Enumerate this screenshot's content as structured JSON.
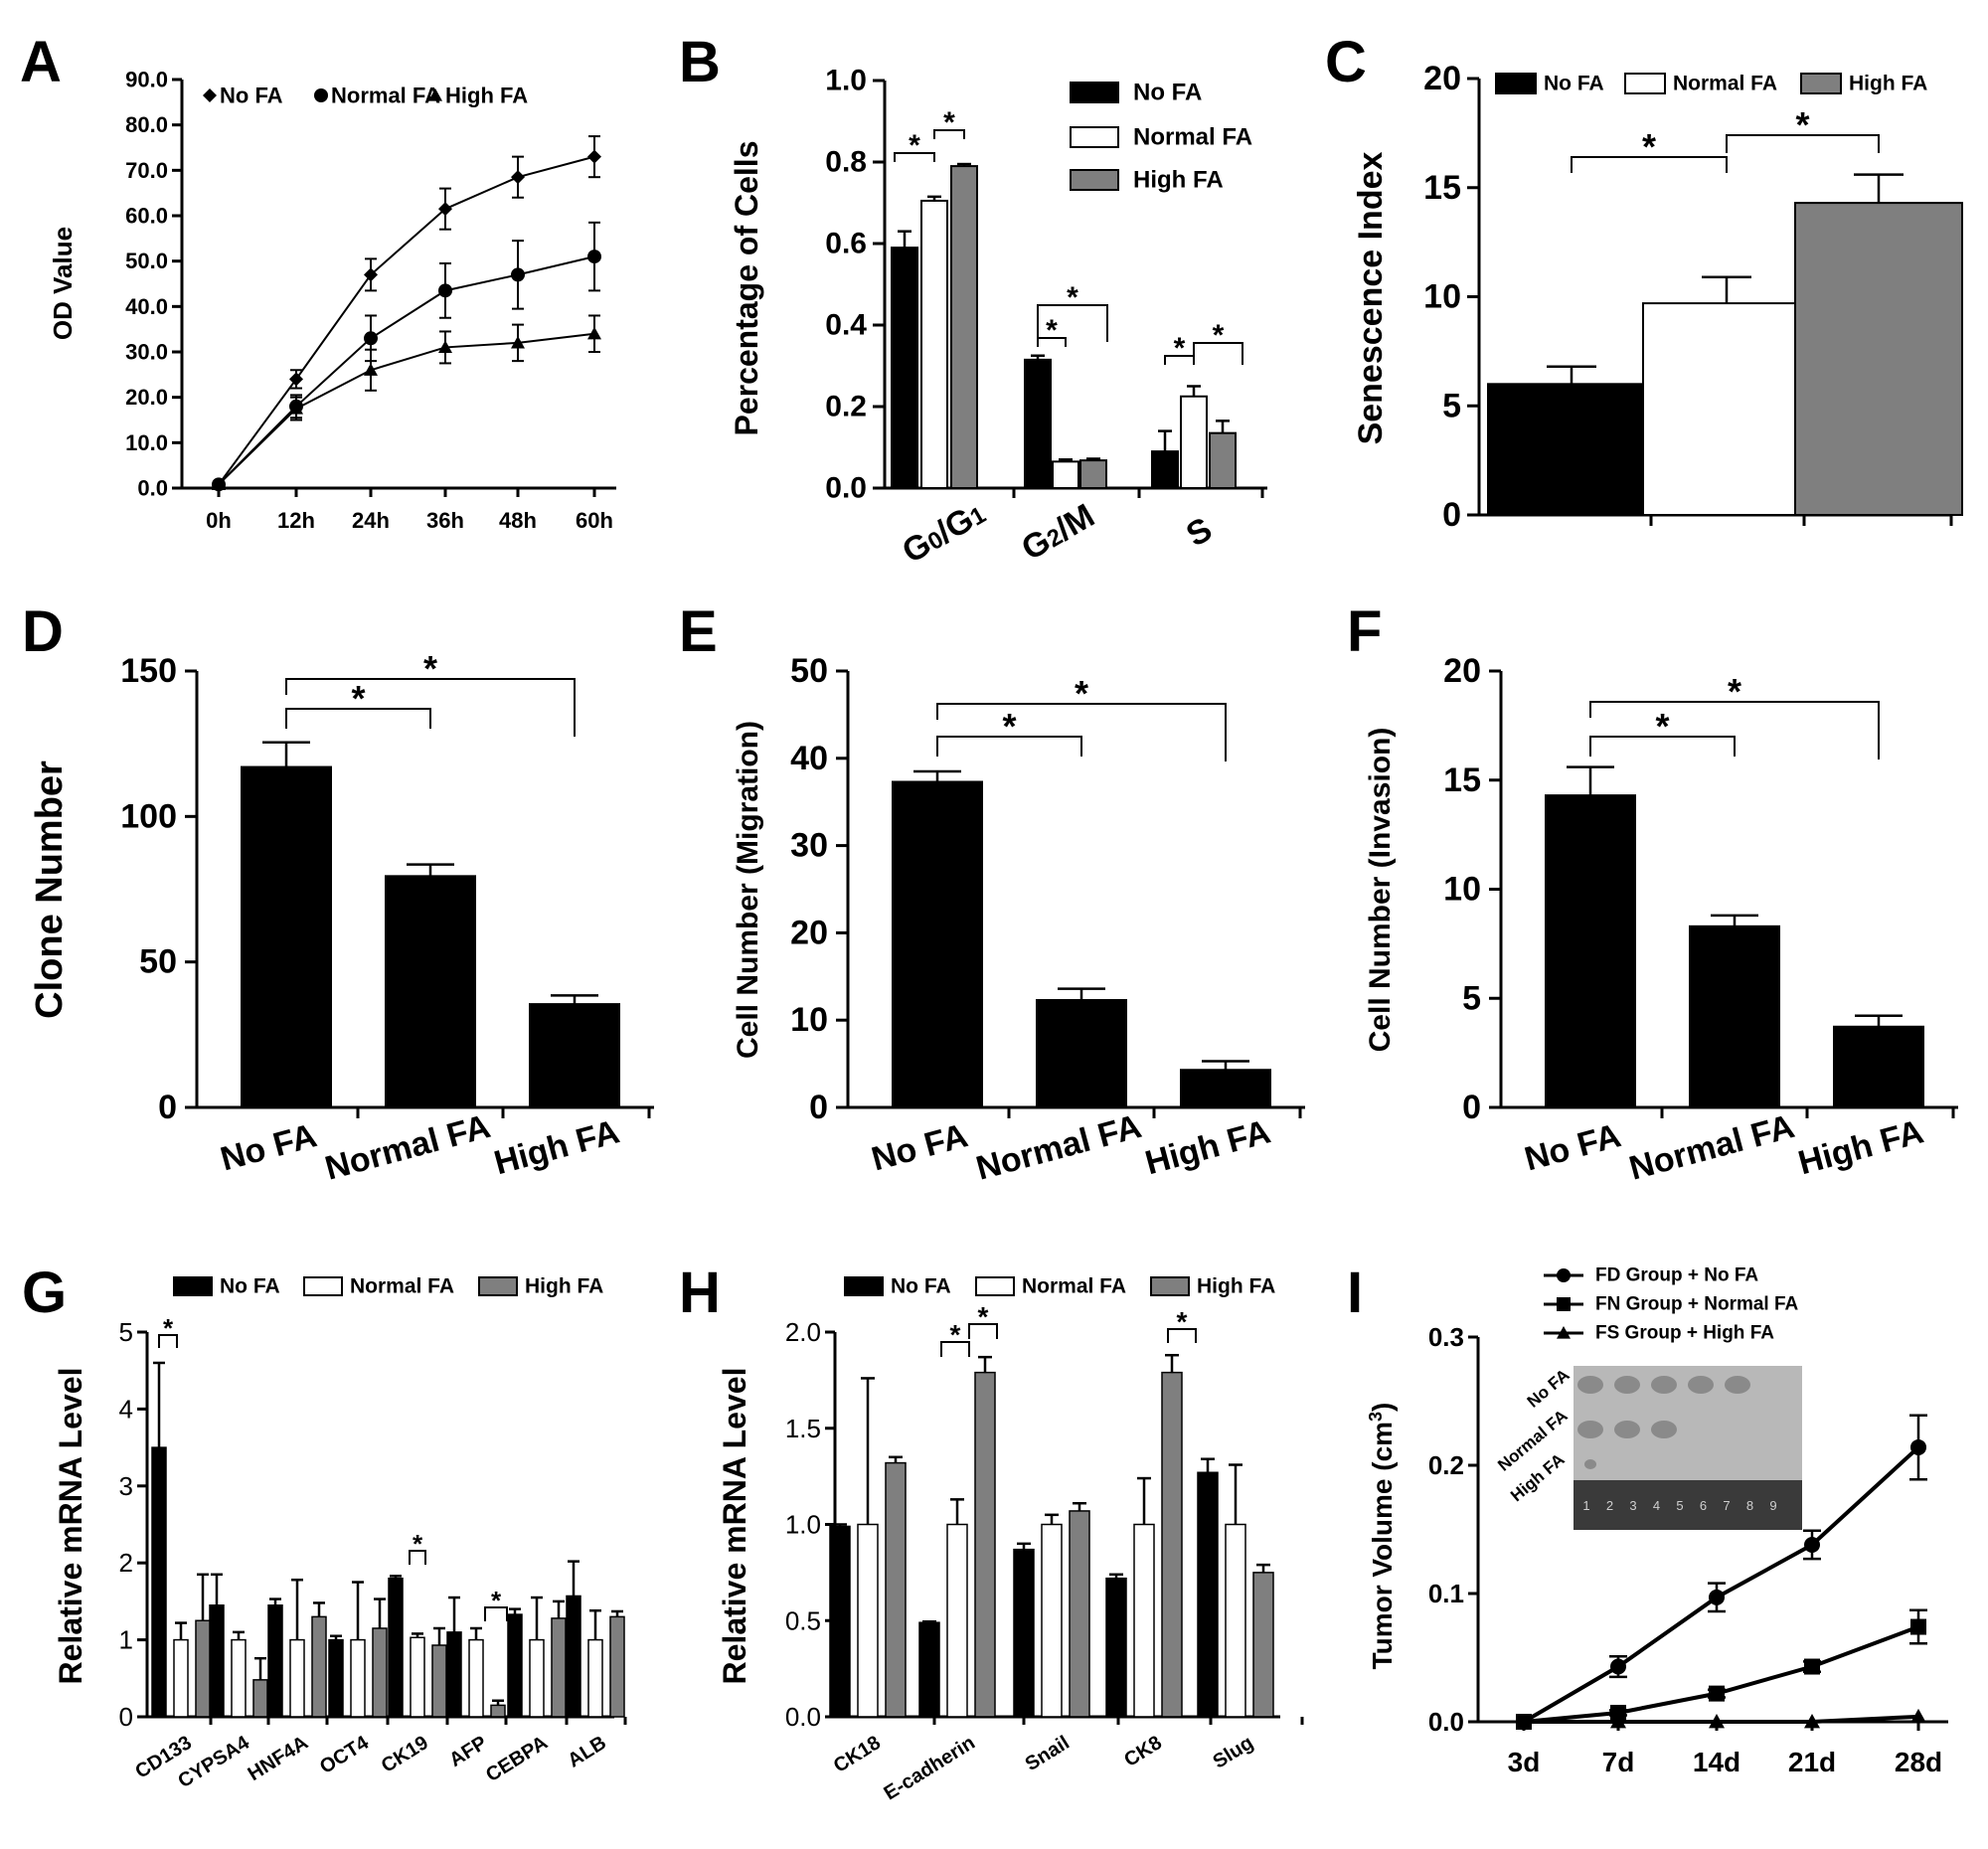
{
  "colors": {
    "no_fa": "#000000",
    "normal_fa": "#ffffff",
    "high_fa": "#7f7f7f",
    "photo_bg": "#b8b8b8",
    "ruler": "#3a3a3a"
  },
  "chart_data": [
    {
      "panel": "A",
      "type": "line",
      "xlabel": "",
      "ylabel": "OD Value",
      "categories": [
        "0h",
        "12h",
        "24h",
        "36h",
        "48h",
        "60h"
      ],
      "yticks": [
        "0.0",
        "10.0",
        "20.0",
        "30.0",
        "40.0",
        "50.0",
        "60.0",
        "70.0",
        "80.0",
        "90.0"
      ],
      "ylim": [
        0,
        90
      ],
      "legend": "top",
      "series": [
        {
          "name": "No FA",
          "marker": "diamond",
          "values": [
            0.8,
            24,
            47,
            61.5,
            68.5,
            73
          ],
          "errors": [
            0.5,
            2,
            3.5,
            4.5,
            4.5,
            4.5
          ]
        },
        {
          "name": "Normal FA",
          "marker": "circle",
          "values": [
            0.8,
            18,
            33,
            43.5,
            47,
            51
          ],
          "errors": [
            0.5,
            2.5,
            5,
            6,
            7.5,
            7.5
          ]
        },
        {
          "name": "High FA",
          "marker": "triangle",
          "values": [
            0.8,
            17.5,
            26,
            31,
            32,
            34
          ],
          "errors": [
            0.5,
            2.5,
            4.5,
            3.5,
            4,
            4
          ]
        }
      ]
    },
    {
      "panel": "B",
      "type": "bar",
      "xlabel": "",
      "ylabel": "Percentage of Cells",
      "categories": [
        {
          "base": "G",
          "sub1": "0",
          "mid": "/G",
          "sub2": "1"
        },
        {
          "base": "G",
          "sub1": "2",
          "mid": "/M",
          "sub2": ""
        },
        {
          "base": "S",
          "sub1": "",
          "mid": "",
          "sub2": ""
        }
      ],
      "yticks": [
        "0.0",
        "0.2",
        "0.4",
        "0.6",
        "0.8",
        "1.0"
      ],
      "ylim": [
        0,
        1.0
      ],
      "legend": "top-right",
      "series": [
        {
          "name": "No FA",
          "values": [
            0.59,
            0.315,
            0.09
          ],
          "errors": [
            0.04,
            0.01,
            0.05
          ]
        },
        {
          "name": "Normal FA",
          "values": [
            0.705,
            0.065,
            0.225
          ],
          "errors": [
            0.01,
            0.005,
            0.025
          ]
        },
        {
          "name": "High FA",
          "values": [
            0.79,
            0.068,
            0.135
          ],
          "errors": [
            0.005,
            0.004,
            0.03
          ]
        }
      ],
      "annotations": [
        "*",
        "*",
        "*",
        "*",
        "*",
        "*"
      ]
    },
    {
      "panel": "C",
      "type": "bar",
      "xlabel": "",
      "ylabel": "Senescence Index",
      "categories": [
        "No FA",
        "Normal FA",
        "High FA"
      ],
      "yticks": [
        "0",
        "5",
        "10",
        "15",
        "20"
      ],
      "ylim": [
        0,
        20
      ],
      "legend": "top",
      "series": [
        {
          "names": [
            "No FA",
            "Normal FA",
            "High FA"
          ],
          "values": [
            6.0,
            9.7,
            14.3
          ],
          "errors": [
            0.8,
            1.2,
            1.3
          ]
        }
      ],
      "annotations": [
        "*",
        "*"
      ]
    },
    {
      "panel": "D",
      "type": "bar",
      "xlabel": "",
      "ylabel": "Clone Number",
      "categories": [
        "No FA",
        "Normal FA",
        "High FA"
      ],
      "yticks": [
        "0",
        "50",
        "100",
        "150"
      ],
      "ylim": [
        0,
        150
      ],
      "values": [
        117,
        79.5,
        35.5
      ],
      "errors": [
        8.5,
        4,
        3
      ],
      "annotations": [
        "*",
        "*"
      ]
    },
    {
      "panel": "E",
      "type": "bar",
      "xlabel": "",
      "ylabel": "Cell Number (Migration)",
      "categories": [
        "No FA",
        "Normal FA",
        "High FA"
      ],
      "yticks": [
        "0",
        "10",
        "20",
        "30",
        "40",
        "50"
      ],
      "ylim": [
        0,
        50
      ],
      "values": [
        37.3,
        12.3,
        4.3
      ],
      "errors": [
        1.2,
        1.3,
        1.0
      ],
      "annotations": [
        "*",
        "*"
      ]
    },
    {
      "panel": "F",
      "type": "bar",
      "xlabel": "",
      "ylabel": "Cell Number (Invasion)",
      "categories": [
        "No FA",
        "Normal FA",
        "High FA"
      ],
      "yticks": [
        "0",
        "5",
        "10",
        "15",
        "20"
      ],
      "ylim": [
        0,
        20
      ],
      "values": [
        14.3,
        8.3,
        3.7
      ],
      "errors": [
        1.3,
        0.5,
        0.5
      ],
      "annotations": [
        "*",
        "*"
      ]
    },
    {
      "panel": "G",
      "type": "bar",
      "xlabel": "",
      "ylabel": "Relative mRNA Level",
      "categories": [
        "CD133",
        "CYPSA4",
        "HNF4A",
        "OCT4",
        "CK19",
        "AFP",
        "CEBPA",
        "ALB"
      ],
      "yticks": [
        "0",
        "1",
        "2",
        "3",
        "4",
        "5"
      ],
      "ylim": [
        0,
        5
      ],
      "legend": "top",
      "series": [
        {
          "name": "No FA",
          "values": [
            3.5,
            1.45,
            1.45,
            1.0,
            1.8,
            1.1,
            1.33,
            1.57
          ],
          "errors": [
            1.1,
            0.4,
            0.08,
            0.05,
            0.03,
            0.45,
            0.07,
            0.45
          ]
        },
        {
          "name": "Normal FA",
          "values": [
            1.0,
            1.0,
            1.0,
            1.0,
            1.03,
            1.0,
            1.0,
            1.0
          ],
          "errors": [
            0.22,
            0.1,
            0.78,
            0.75,
            0.05,
            0.15,
            0.55,
            0.38
          ]
        },
        {
          "name": "High FA",
          "values": [
            1.25,
            0.48,
            1.3,
            1.15,
            0.93,
            0.15,
            1.28,
            1.3
          ],
          "errors": [
            0.6,
            0.28,
            0.18,
            0.38,
            0.22,
            0.06,
            0.22,
            0.07
          ]
        }
      ],
      "annotations": [
        "*",
        "*",
        "*"
      ]
    },
    {
      "panel": "H",
      "type": "bar",
      "xlabel": "",
      "ylabel": "Relative mRNA Level",
      "categories": [
        "CK18",
        "E-cadherin",
        "Snail",
        "CK8",
        "Slug"
      ],
      "yticks": [
        "0.0",
        "0.5",
        "1.0",
        "1.5",
        "2.0"
      ],
      "ylim": [
        0,
        2.0
      ],
      "legend": "top",
      "series": [
        {
          "name": "No FA",
          "values": [
            0.99,
            0.49,
            0.87,
            0.72,
            1.27
          ],
          "errors": [
            0.01,
            0.005,
            0.03,
            0.02,
            0.07
          ]
        },
        {
          "name": "Normal FA",
          "values": [
            1.0,
            1.0,
            1.0,
            1.0,
            1.0
          ],
          "errors": [
            0.76,
            0.13,
            0.05,
            0.24,
            0.31
          ]
        },
        {
          "name": "High FA",
          "values": [
            1.32,
            1.79,
            1.07,
            1.79,
            0.75
          ],
          "errors": [
            0.03,
            0.08,
            0.04,
            0.09,
            0.04
          ]
        }
      ],
      "annotations": [
        "*",
        "*",
        "*"
      ]
    },
    {
      "panel": "I",
      "type": "line",
      "xlabel": "",
      "ylabel": "Tumor Volume (cm",
      "ylabel_sup": "3",
      "ylabel_end": ")",
      "categories": [
        "3d",
        "7d",
        "14d",
        "21d",
        "28d"
      ],
      "yticks": [
        "0.0",
        "0.1",
        "0.2",
        "0.3"
      ],
      "ylim": [
        0,
        0.3
      ],
      "legend": "top",
      "series": [
        {
          "name": "FD Group + No FA",
          "marker": "circle",
          "values": [
            0,
            0.043,
            0.097,
            0.138,
            0.214
          ],
          "errors": [
            0,
            0.008,
            0.011,
            0.011,
            0.025
          ]
        },
        {
          "name": "FN Group + Normal FA",
          "marker": "square",
          "values": [
            0,
            0.007,
            0.022,
            0.043,
            0.074
          ],
          "errors": [
            0,
            0.002,
            0.003,
            0.004,
            0.013
          ]
        },
        {
          "name": "FS Group + High FA",
          "marker": "triangle",
          "values": [
            0,
            0,
            0,
            0,
            0.004
          ],
          "errors": [
            0,
            0,
            0,
            0,
            0.001
          ]
        }
      ],
      "inset": {
        "row_labels": [
          "No FA",
          "Normal FA",
          "High FA"
        ],
        "ruler_numbers": [
          "1",
          "2",
          "3",
          "4",
          "5",
          "6",
          "7",
          "8",
          "9"
        ],
        "tumors_per_row": [
          5,
          3,
          1
        ]
      }
    }
  ]
}
